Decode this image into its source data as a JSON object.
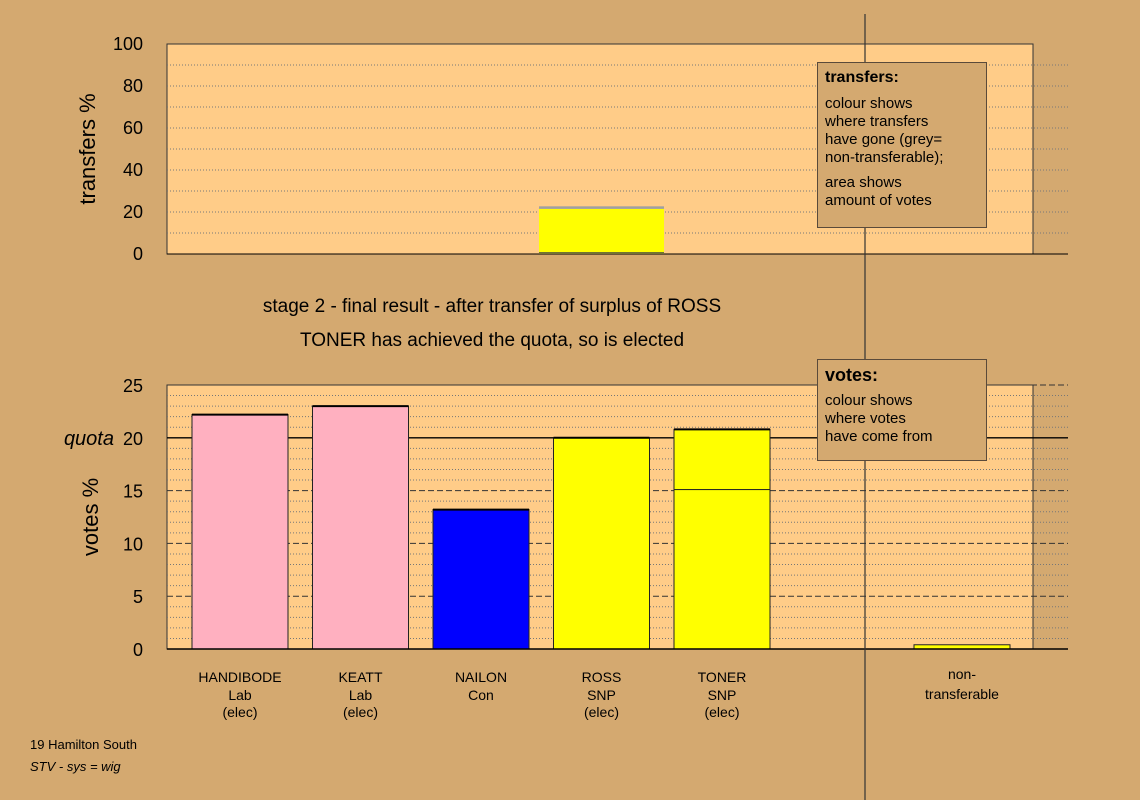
{
  "chart_data": [
    {
      "type": "bar",
      "name": "transfers",
      "ylabel": "transfers %",
      "ylim": [
        0,
        100
      ],
      "yticks": [
        "0",
        "20",
        "40",
        "60",
        "80",
        "100"
      ],
      "grid": true,
      "bars": [
        {
          "candidate": "TONER",
          "segments": [
            {
              "value": 21.5,
              "color": "#FFFF00"
            },
            {
              "value": 1.2,
              "color": "#A0A0A0"
            }
          ]
        }
      ],
      "legend": {
        "title": "transfers:",
        "lines1": [
          "colour shows",
          "where transfers",
          "have gone (grey=",
          "non-transferable);"
        ],
        "lines2": [
          "area shows",
          "amount of votes"
        ]
      }
    },
    {
      "type": "bar",
      "name": "votes",
      "ylabel": "votes %",
      "ylim": [
        0,
        25
      ],
      "yticks": [
        "0",
        "5",
        "10",
        "15",
        "20",
        "25"
      ],
      "quota_label": "quota",
      "quota": 20,
      "grid": true,
      "candidates": [
        {
          "name": "HANDIBODE",
          "party": "Lab",
          "status": "(elec)",
          "segments": [
            {
              "value": 22.2,
              "color": "#FFB0C0"
            }
          ]
        },
        {
          "name": "KEATT",
          "party": "Lab",
          "status": "(elec)",
          "segments": [
            {
              "value": 23.0,
              "color": "#FFB0C0"
            }
          ]
        },
        {
          "name": "NAILON",
          "party": "Con",
          "status": "",
          "segments": [
            {
              "value": 13.2,
              "color": "#0000FF"
            }
          ]
        },
        {
          "name": "ROSS",
          "party": "SNP",
          "status": "(elec)",
          "segments": [
            {
              "value": 20.0,
              "color": "#FFFF00"
            }
          ]
        },
        {
          "name": "TONER",
          "party": "SNP",
          "status": "(elec)",
          "segments": [
            {
              "value": 15.1,
              "color": "#FFFF00"
            },
            {
              "value": 5.7,
              "color": "#FFFF00"
            }
          ]
        }
      ],
      "nontransferable": {
        "label1": "non-",
        "label2": "transferable",
        "value": 0.4,
        "color": "#FFFF00"
      },
      "legend": {
        "title": "votes:",
        "lines": [
          "colour shows",
          "where votes",
          "have come from"
        ]
      }
    }
  ],
  "stage_title": "stage 2 - final result - after transfer of surplus of ROSS",
  "stage_subtitle": "TONER has achieved the quota, so is elected",
  "footer": {
    "line1": "19 Hamilton South",
    "line2": "STV - sys = wig"
  },
  "colors": {
    "background": "#D4A970",
    "plot_bg": "#FFCC88"
  }
}
